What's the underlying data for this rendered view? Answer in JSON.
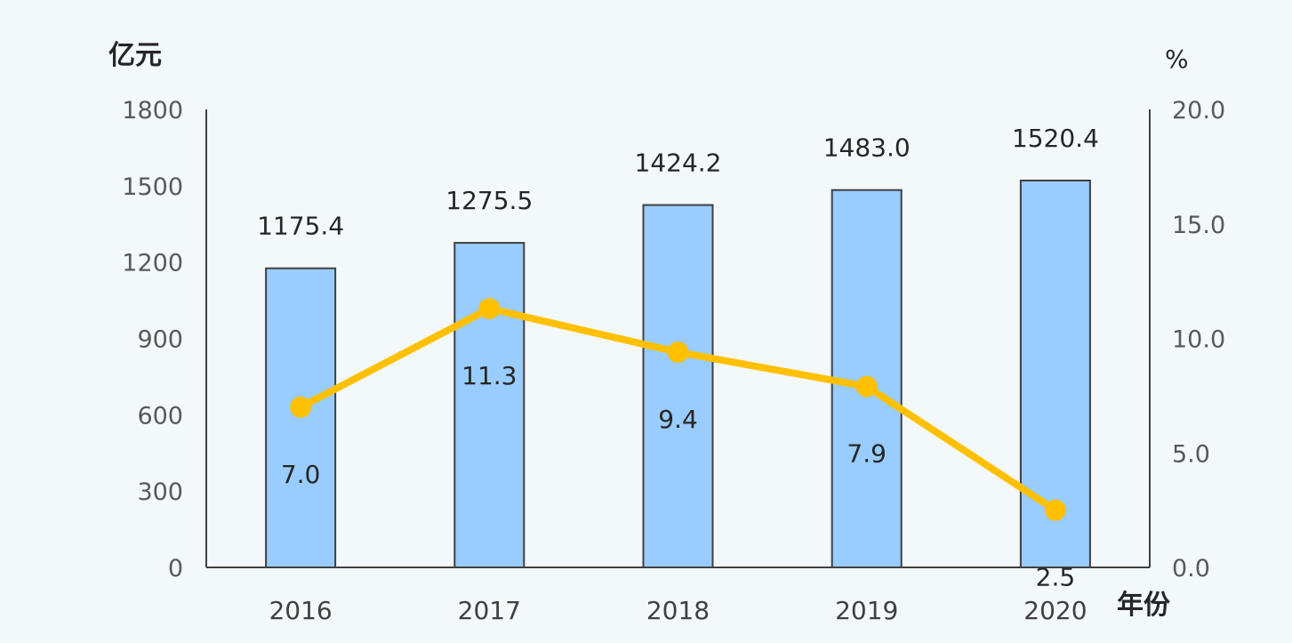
{
  "chart_data": {
    "type": "bar+line",
    "categories": [
      "2016",
      "2017",
      "2018",
      "2019",
      "2020"
    ],
    "series": [
      {
        "type": "bar",
        "axis": "left",
        "values": [
          1175.4,
          1275.5,
          1424.2,
          1483.0,
          1520.4
        ],
        "labels": [
          "1175.4",
          "1275.5",
          "1424.2",
          "1483.0",
          "1520.4"
        ],
        "color": "#99ccff"
      },
      {
        "type": "line",
        "axis": "right",
        "values": [
          7.0,
          11.3,
          9.4,
          7.9,
          2.5
        ],
        "labels": [
          "7.0",
          "11.3",
          "9.4",
          "7.9",
          "2.5"
        ],
        "color": "#ffc000"
      }
    ],
    "ylabel_left": "亿元",
    "ylabel_right": "%",
    "xlabel": "年份",
    "ylim_left": [
      0,
      1800
    ],
    "ylim_right": [
      0,
      20
    ],
    "yticks_left": [
      "0",
      "300",
      "600",
      "900",
      "1200",
      "1500",
      "1800"
    ],
    "yticks_right": [
      "0.0",
      "5.0",
      "10.0",
      "15.0",
      "20.0"
    ],
    "grid": false
  }
}
